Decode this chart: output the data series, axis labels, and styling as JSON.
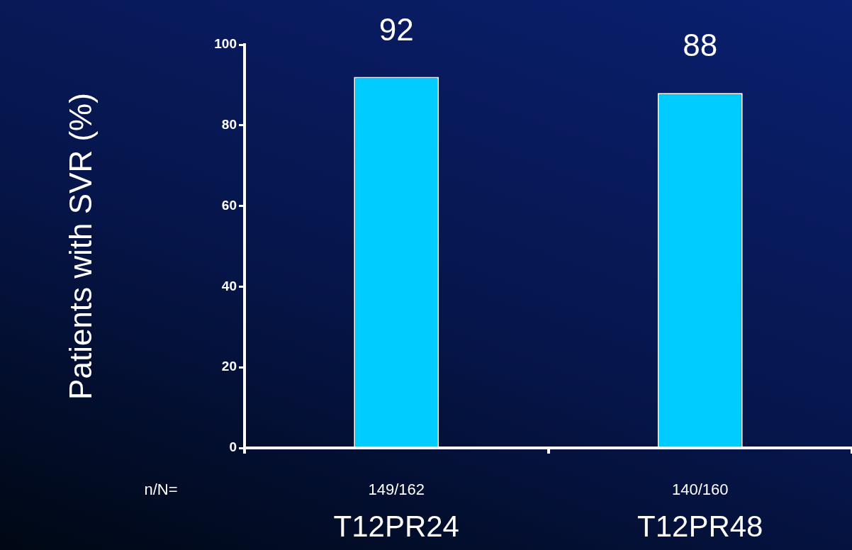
{
  "chart_data": {
    "type": "bar",
    "ylabel": "Patients with SVR (%)",
    "categories": [
      "T12PR24",
      "T12PR48"
    ],
    "values": [
      92,
      88
    ],
    "color": "#00ccff",
    "ylim": [
      0,
      100
    ],
    "yticks": [
      0,
      20,
      40,
      60,
      80,
      100
    ],
    "grid": false,
    "legend": false,
    "data_labels": true,
    "annotations": [
      "n/N=",
      "149/162",
      "140/160"
    ]
  }
}
